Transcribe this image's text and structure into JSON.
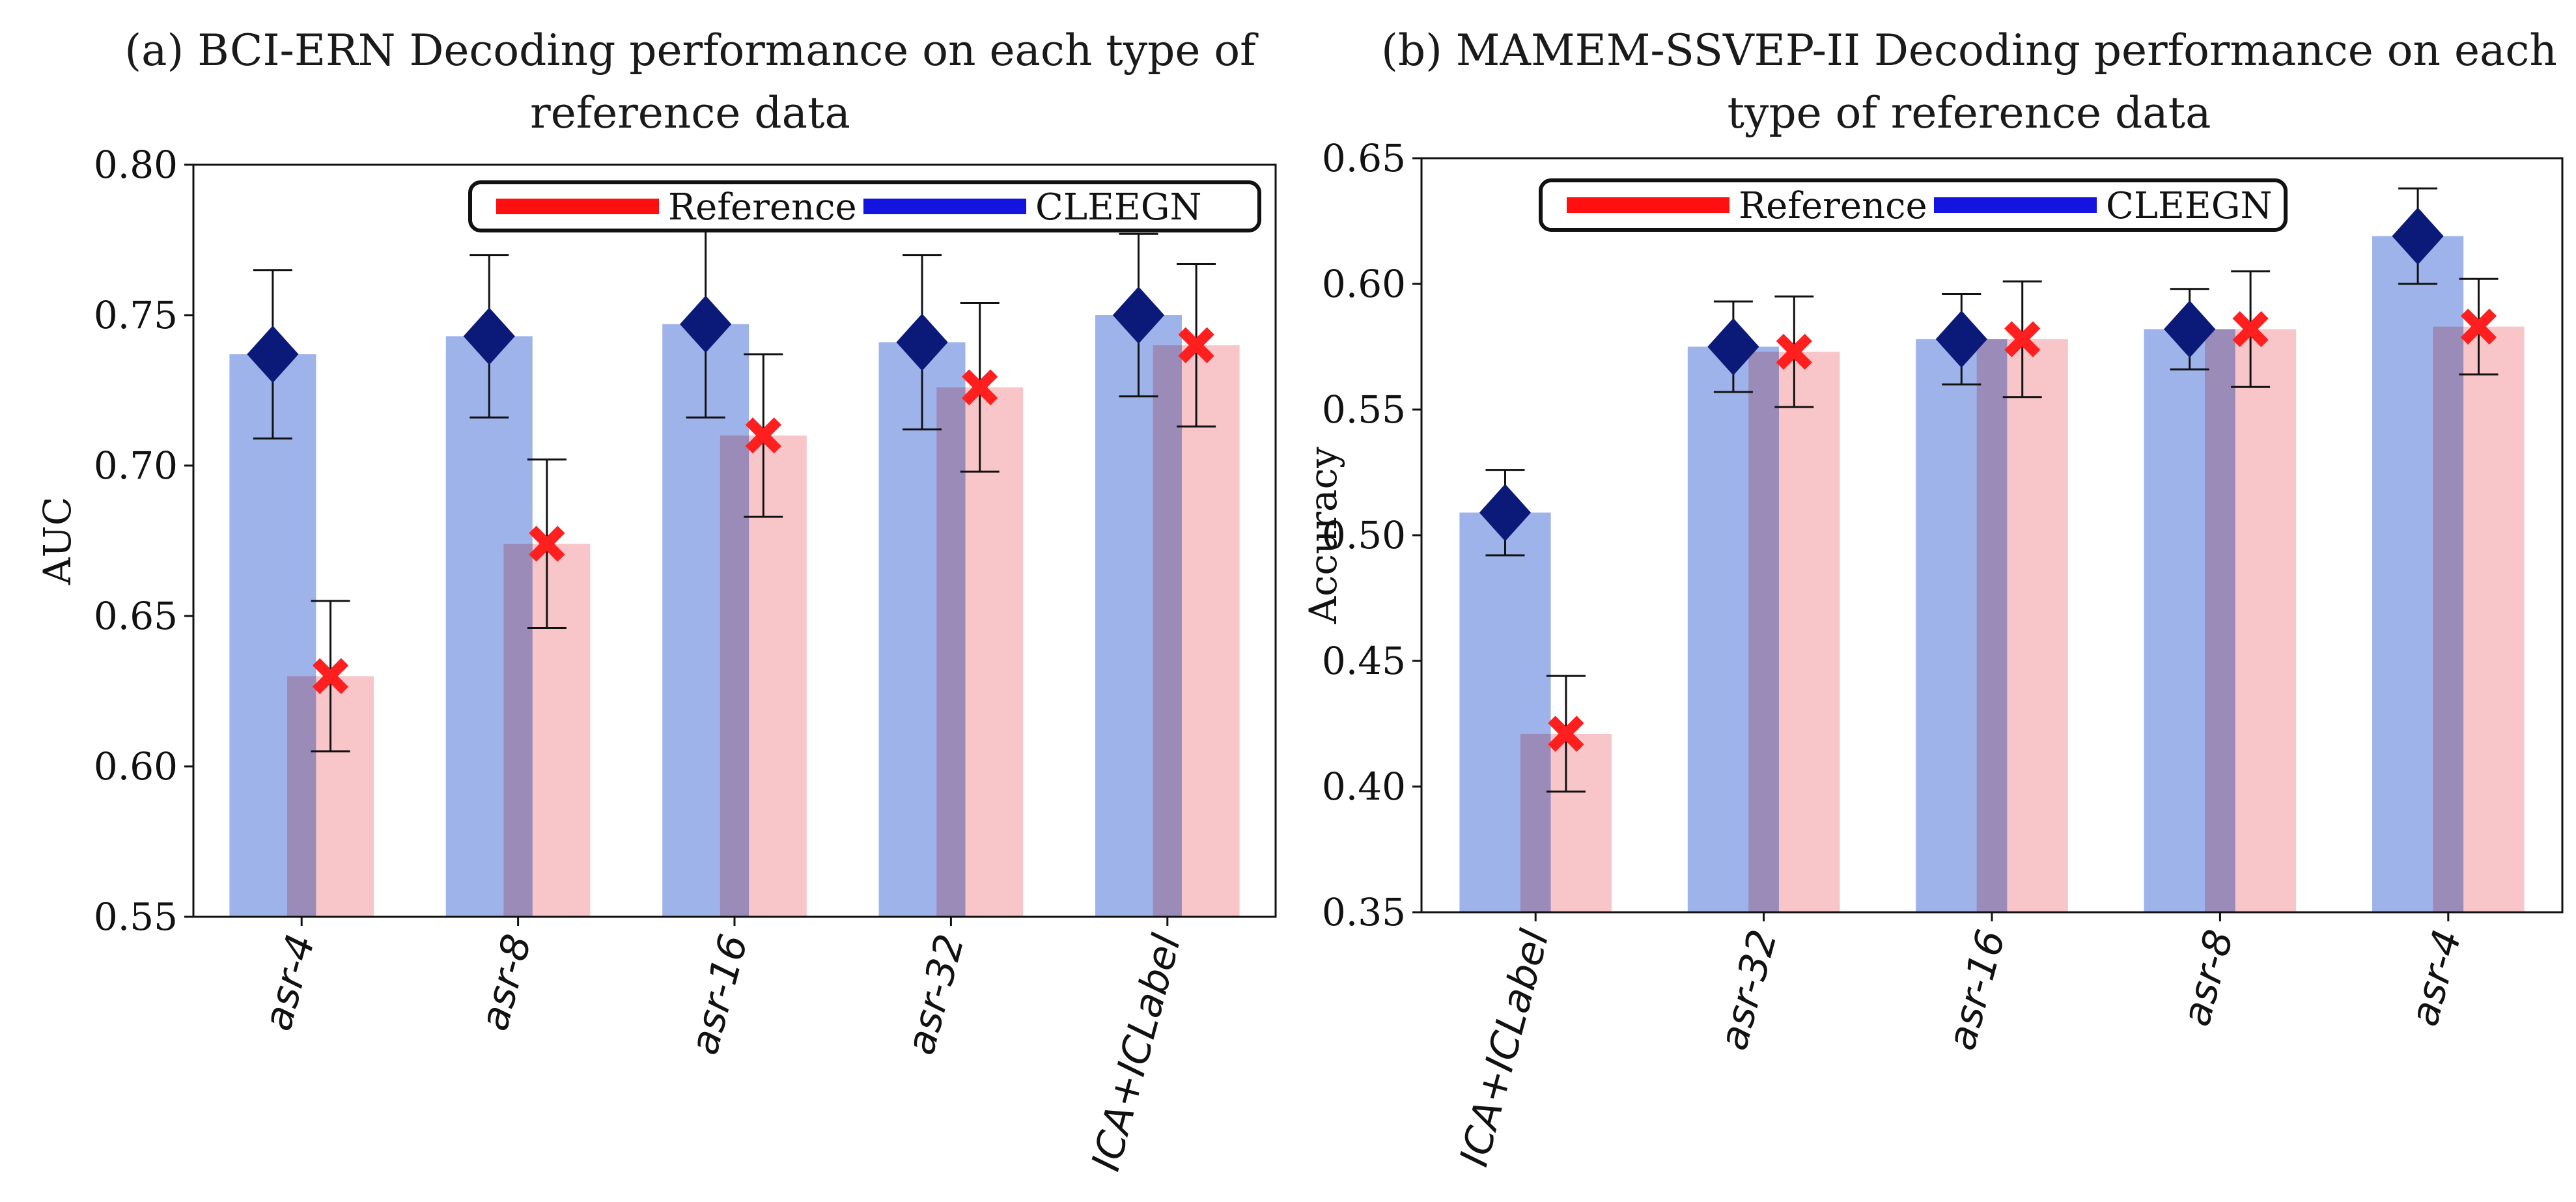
{
  "chart_data": [
    {
      "type": "bar",
      "title_lines": [
        "(a) BCI-ERN Decoding performance on each type of",
        "reference data"
      ],
      "xlabel": "",
      "ylabel": "AUC",
      "ylim": [
        0.55,
        0.8
      ],
      "yticks": [
        "0.55",
        "0.60",
        "0.65",
        "0.70",
        "0.75",
        "0.80"
      ],
      "ytick_values": [
        0.55,
        0.6,
        0.65,
        0.7,
        0.75,
        0.8
      ],
      "categories": [
        "asr-4",
        "asr-8",
        "asr-16",
        "asr-32",
        "ICA+ICLabel"
      ],
      "legend": {
        "position": "top-right",
        "entries": [
          "Reference",
          "CLEEGN"
        ]
      },
      "series": [
        {
          "name": "CLEEGN",
          "color": "#9fb3eb",
          "marker_color": "#0b1a78",
          "marker": "diamond",
          "values": [
            0.737,
            0.743,
            0.747,
            0.741,
            0.75
          ],
          "errors": [
            0.028,
            0.027,
            0.031,
            0.029,
            0.027
          ]
        },
        {
          "name": "Reference",
          "color": "#f7bcc0",
          "marker_color": "#ff1f1f",
          "marker": "x",
          "values": [
            0.63,
            0.674,
            0.71,
            0.726,
            0.74
          ],
          "errors": [
            0.025,
            0.028,
            0.027,
            0.028,
            0.027
          ]
        }
      ]
    },
    {
      "type": "bar",
      "title_lines": [
        "(b) MAMEM-SSVEP-II Decoding performance on each",
        "type of reference data"
      ],
      "xlabel": "",
      "ylabel": "Accuracy",
      "ylim": [
        0.35,
        0.65
      ],
      "yticks": [
        "0.35",
        "0.40",
        "0.45",
        "0.50",
        "0.55",
        "0.60",
        "0.65"
      ],
      "ytick_values": [
        0.35,
        0.4,
        0.45,
        0.5,
        0.55,
        0.6,
        0.65
      ],
      "categories": [
        "ICA+ICLabel",
        "asr-32",
        "asr-16",
        "asr-8",
        "asr-4"
      ],
      "legend": {
        "position": "top-left",
        "entries": [
          "Reference",
          "CLEEGN"
        ]
      },
      "series": [
        {
          "name": "CLEEGN",
          "color": "#9fb3eb",
          "marker_color": "#0b1a78",
          "marker": "diamond",
          "values": [
            0.509,
            0.575,
            0.578,
            0.582,
            0.619
          ],
          "errors": [
            0.017,
            0.018,
            0.018,
            0.016,
            0.019
          ]
        },
        {
          "name": "Reference",
          "color": "#f7bcc0",
          "marker_color": "#ff1f1f",
          "marker": "x",
          "values": [
            0.421,
            0.573,
            0.578,
            0.582,
            0.583
          ],
          "errors": [
            0.023,
            0.022,
            0.023,
            0.023,
            0.019
          ]
        }
      ]
    }
  ]
}
